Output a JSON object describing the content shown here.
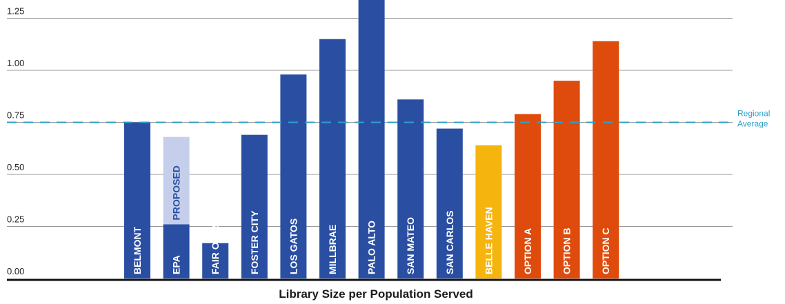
{
  "chart_data": {
    "type": "bar",
    "title": "",
    "xlabel": "Library Size per Population Served",
    "ylabel": "",
    "ylim": [
      0,
      1.35
    ],
    "y_ticks": [
      "0.00",
      "0.25",
      "0.50",
      "0.75",
      "1.00",
      "1.25"
    ],
    "y_tick_values": [
      0,
      0.25,
      0.5,
      0.75,
      1.0,
      1.25
    ],
    "grid": true,
    "categories": [
      "BELMONT",
      "EPA",
      "FAIR OAKS",
      "FOSTER CITY",
      "LOS GATOS",
      "MILLBRAE",
      "PALO ALTO",
      "SAN MATEO",
      "SAN CARLOS",
      "BELLE HAVEN",
      "OPTION A",
      "OPTION B",
      "OPTION C"
    ],
    "values": [
      0.75,
      0.26,
      0.17,
      0.69,
      0.98,
      1.15,
      1.35,
      0.86,
      0.72,
      0.64,
      0.79,
      0.95,
      1.14
    ],
    "bar_colors": [
      "#2a4fa2",
      "#2a4fa2",
      "#2a4fa2",
      "#2a4fa2",
      "#2a4fa2",
      "#2a4fa2",
      "#2a4fa2",
      "#2a4fa2",
      "#2a4fa2",
      "#f6b50e",
      "#de4b0c",
      "#de4b0c",
      "#de4b0c"
    ],
    "stacked_extra": {
      "category": "EPA",
      "label": "PROPOSED",
      "value_top": 0.68,
      "color": "#c5cfec",
      "label_color": "#2a4fa2"
    },
    "reference_line": {
      "value": 0.75,
      "label_lines": [
        "Regional",
        "Average"
      ],
      "color": "#2e9fc9",
      "style": "dashed"
    }
  }
}
